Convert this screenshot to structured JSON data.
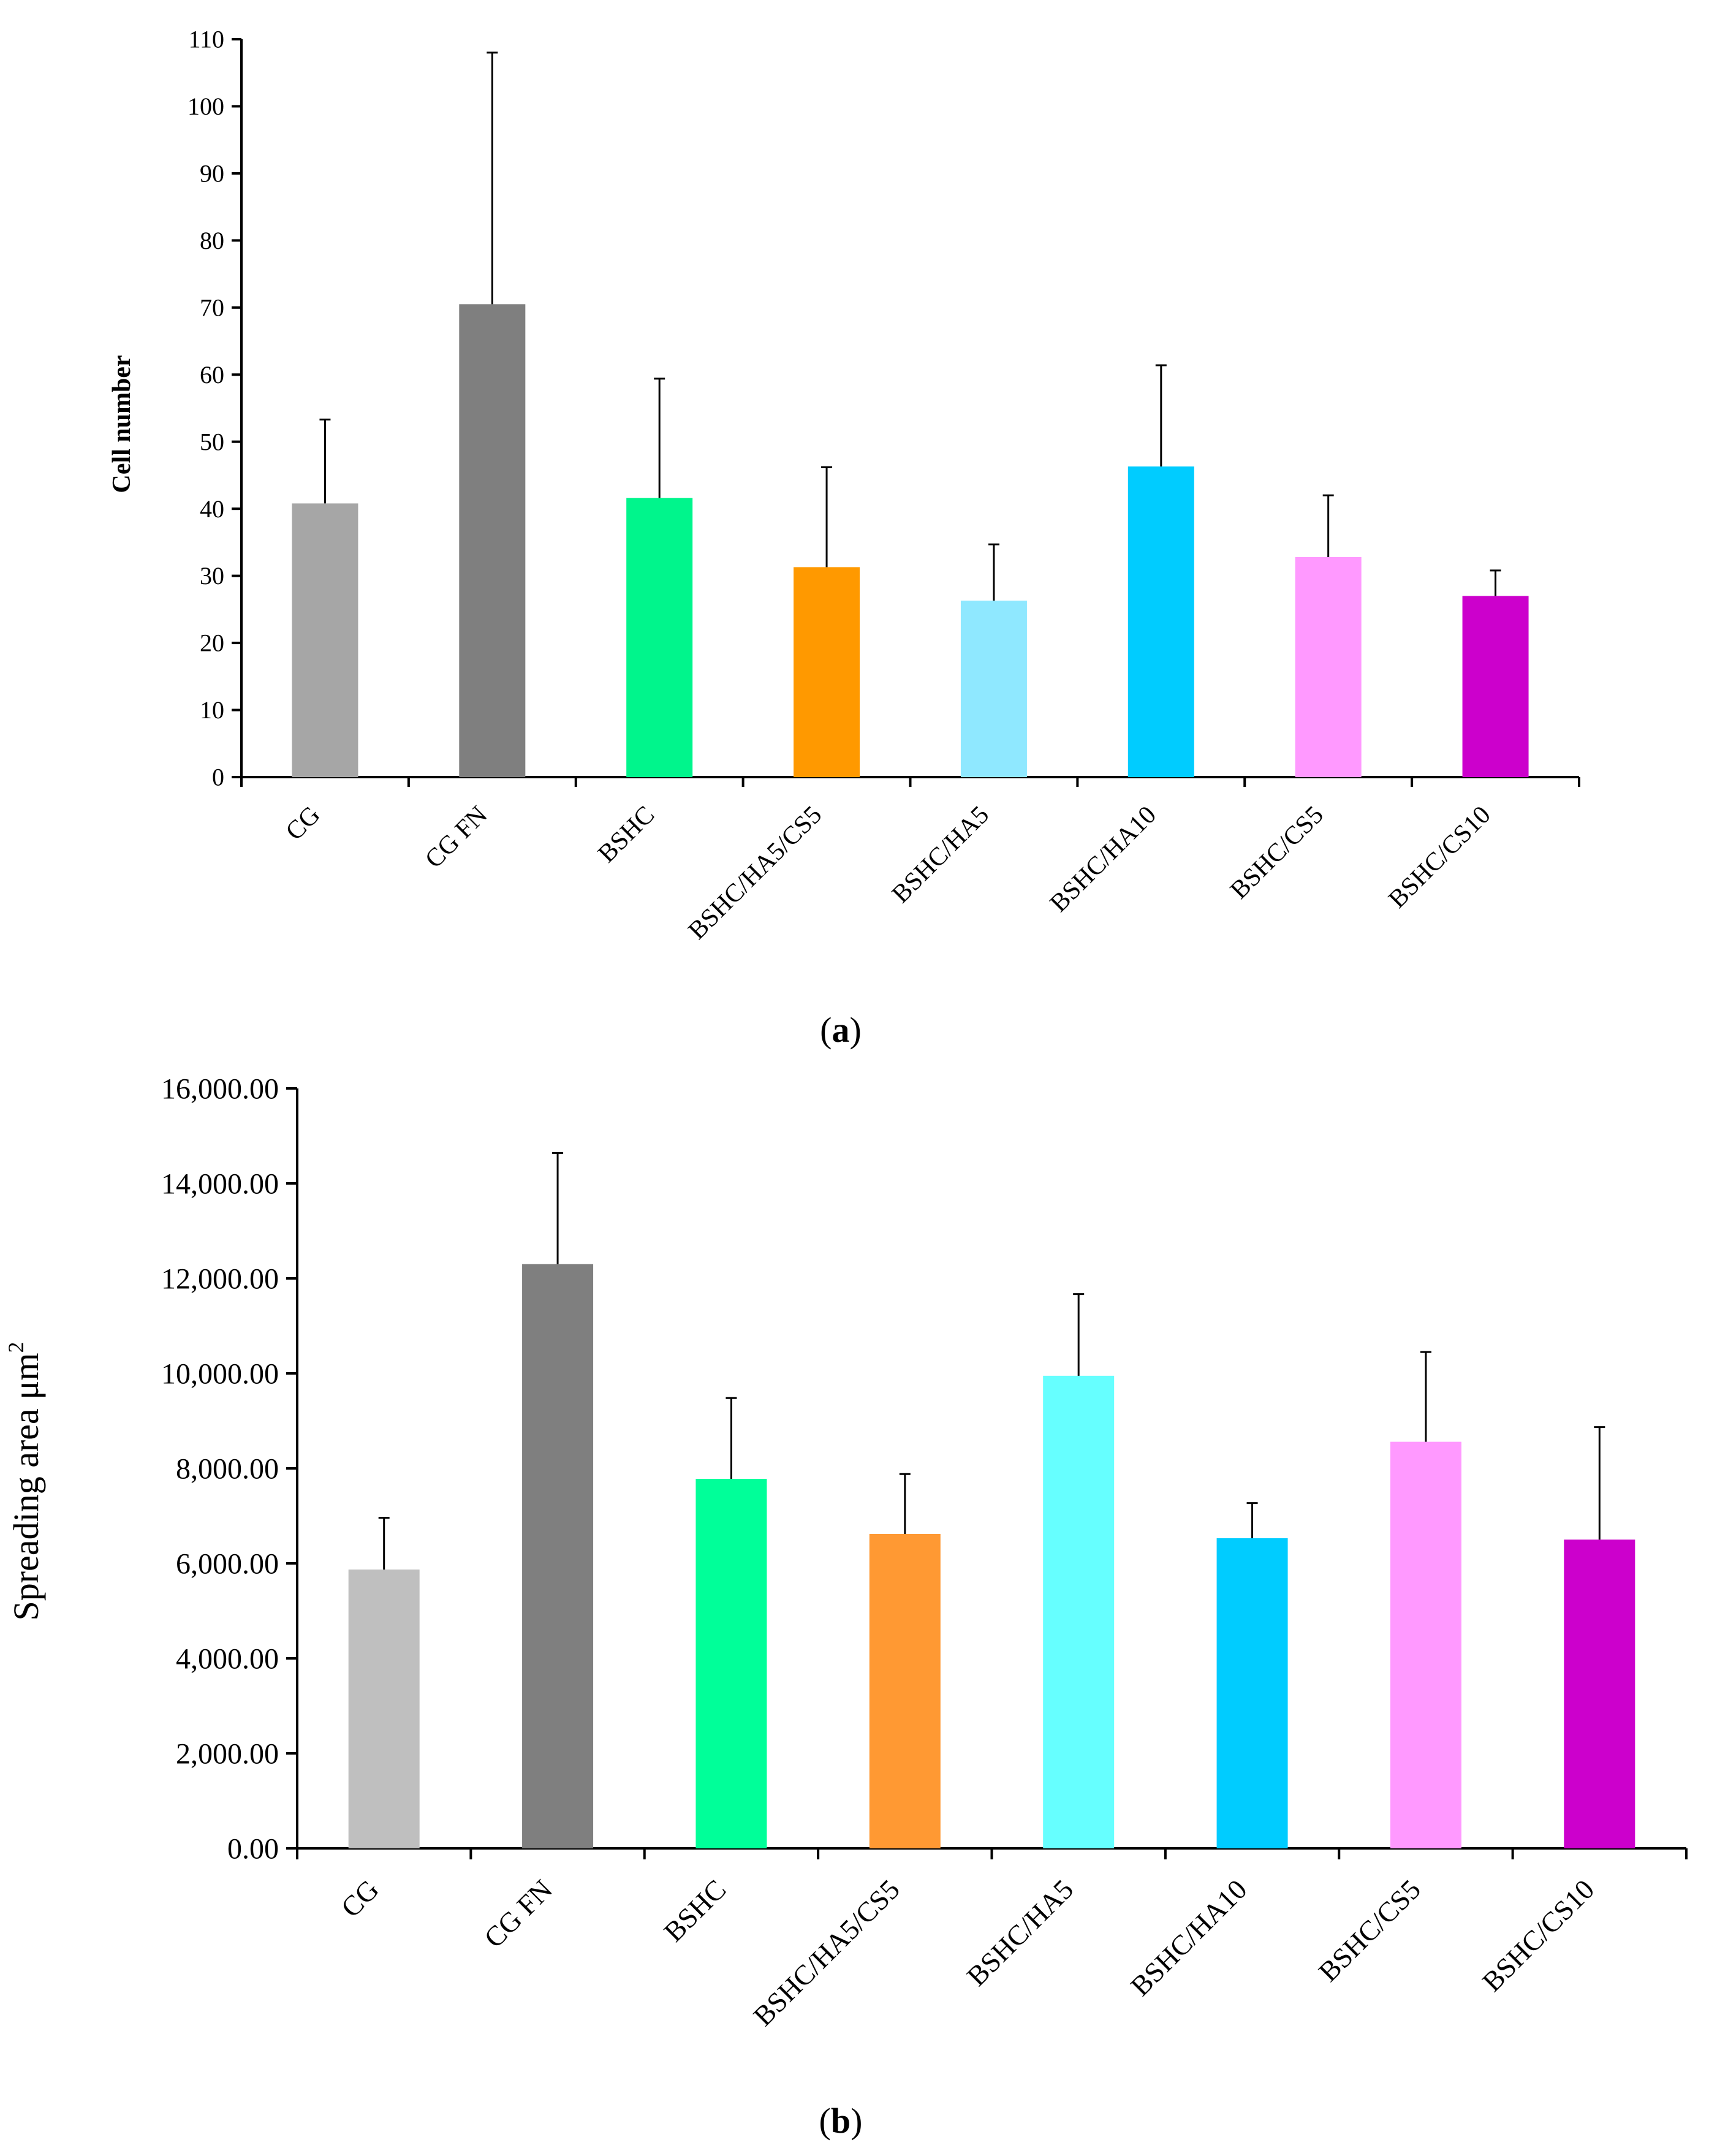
{
  "chart_data": [
    {
      "type": "bar",
      "panel_label": "(a)",
      "panel_label_parts": {
        "open": "(",
        "letter": "a",
        "close": ")"
      },
      "title": "",
      "xlabel": "",
      "ylabel": "Cell number",
      "ylim": [
        0,
        110
      ],
      "yticks": [
        0,
        10,
        20,
        30,
        40,
        50,
        60,
        70,
        80,
        90,
        100,
        110
      ],
      "ytick_labels": [
        "0",
        "10",
        "20",
        "30",
        "40",
        "50",
        "60",
        "70",
        "80",
        "90",
        "100",
        "110"
      ],
      "grid": false,
      "categories": [
        "CG",
        "CG FN",
        "BSHC",
        "BSHC/HA5/CS5",
        "BSHC/HA5",
        "BSHC/HA10",
        "BSHC/CS5",
        "BSHC/CS10"
      ],
      "values": [
        40.8,
        70.5,
        41.6,
        31.3,
        26.3,
        46.3,
        32.8,
        27.0
      ],
      "errors": [
        12.5,
        37.5,
        17.8,
        14.9,
        8.4,
        15.1,
        9.2,
        3.8
      ],
      "colors": [
        "#a6a6a6",
        "#7f7f7f",
        "#00f58c",
        "#ff9900",
        "#8fe8ff",
        "#00ccff",
        "#ff99ff",
        "#cc00cc"
      ]
    },
    {
      "type": "bar",
      "panel_label": "(b)",
      "panel_label_parts": {
        "open": "(",
        "letter": "b",
        "close": ")"
      },
      "title": "",
      "xlabel": "",
      "ylabel": "Spreading area μm²",
      "ylabel_parts": {
        "text": "Spreading area μm",
        "sup": "2"
      },
      "ylim": [
        0,
        16000
      ],
      "yticks": [
        0,
        2000,
        4000,
        6000,
        8000,
        10000,
        12000,
        14000,
        16000
      ],
      "ytick_labels": [
        "0.00",
        "2,000.00",
        "4,000.00",
        "6,000.00",
        "8,000.00",
        "10,000.00",
        "12,000.00",
        "14,000.00",
        "16,000.00"
      ],
      "grid": false,
      "categories": [
        "CG",
        "CG FN",
        "BSHC",
        "BSHC/HA5/CS5",
        "BSHC/HA5",
        "BSHC/HA10",
        "BSHC/CS5",
        "BSHC/CS10"
      ],
      "values": [
        5870,
        12300,
        7780,
        6620,
        9950,
        6530,
        8560,
        6500
      ],
      "errors": [
        1090,
        2340,
        1700,
        1260,
        1720,
        740,
        1890,
        2370
      ],
      "colors": [
        "#bfbfbf",
        "#7f7f7f",
        "#00ff99",
        "#ff9933",
        "#66ffff",
        "#00ccff",
        "#ff99ff",
        "#cc00cc"
      ]
    }
  ]
}
